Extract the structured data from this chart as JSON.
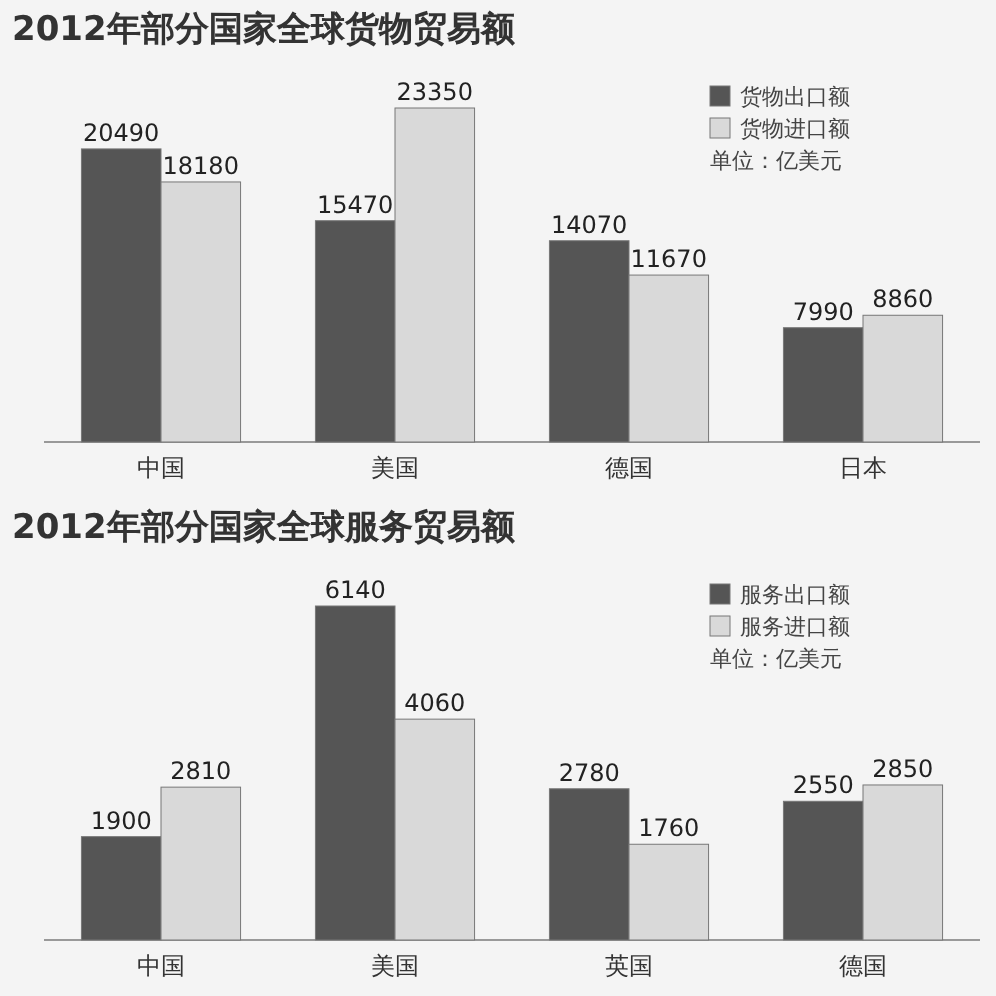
{
  "chart_data": [
    {
      "type": "bar",
      "title": "2012年部分国家全球货物贸易额",
      "categories": [
        "中国",
        "美国",
        "德国",
        "日本"
      ],
      "series": [
        {
          "name": "货物出口额",
          "color": "#555555",
          "values": [
            20490,
            15470,
            14070,
            7990
          ]
        },
        {
          "name": "货物进口额",
          "color": "#d9d9d9",
          "values": [
            18180,
            23350,
            11670,
            8860
          ]
        }
      ],
      "data_labels": true,
      "legend": "top right",
      "annotations": [
        "单位：亿美元"
      ]
    },
    {
      "type": "bar",
      "title": "2012年部分国家全球服务贸易额",
      "categories": [
        "中国",
        "美国",
        "英国",
        "德国"
      ],
      "series": [
        {
          "name": "服务出口额",
          "color": "#555555",
          "values": [
            1900,
            6140,
            2780,
            2550
          ]
        },
        {
          "name": "服务进口额",
          "color": "#d9d9d9",
          "values": [
            2810,
            4060,
            1760,
            2850
          ]
        }
      ],
      "data_labels": true,
      "legend": "top right",
      "annotations": [
        "单位：亿美元"
      ]
    }
  ]
}
